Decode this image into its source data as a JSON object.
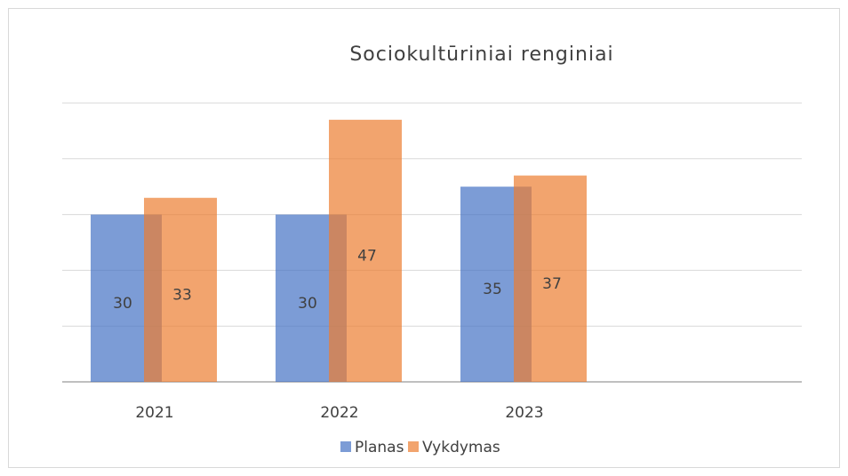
{
  "chart_data": {
    "type": "bar",
    "title": "Sociokultūriniai  renginiai",
    "categories": [
      "2021",
      "2022",
      "2023",
      null
    ],
    "series": [
      {
        "name": "Planas",
        "color": "#4472c4",
        "values": [
          30,
          30,
          35,
          null
        ]
      },
      {
        "name": "Vykdymas",
        "color": "#ed7d31",
        "values": [
          33,
          47,
          37,
          null
        ]
      }
    ],
    "ylim": [
      0,
      50
    ],
    "yticks": [
      0,
      10,
      20,
      30,
      40,
      50
    ],
    "grid": true,
    "ytick_labels": false,
    "legend": "bottom"
  }
}
